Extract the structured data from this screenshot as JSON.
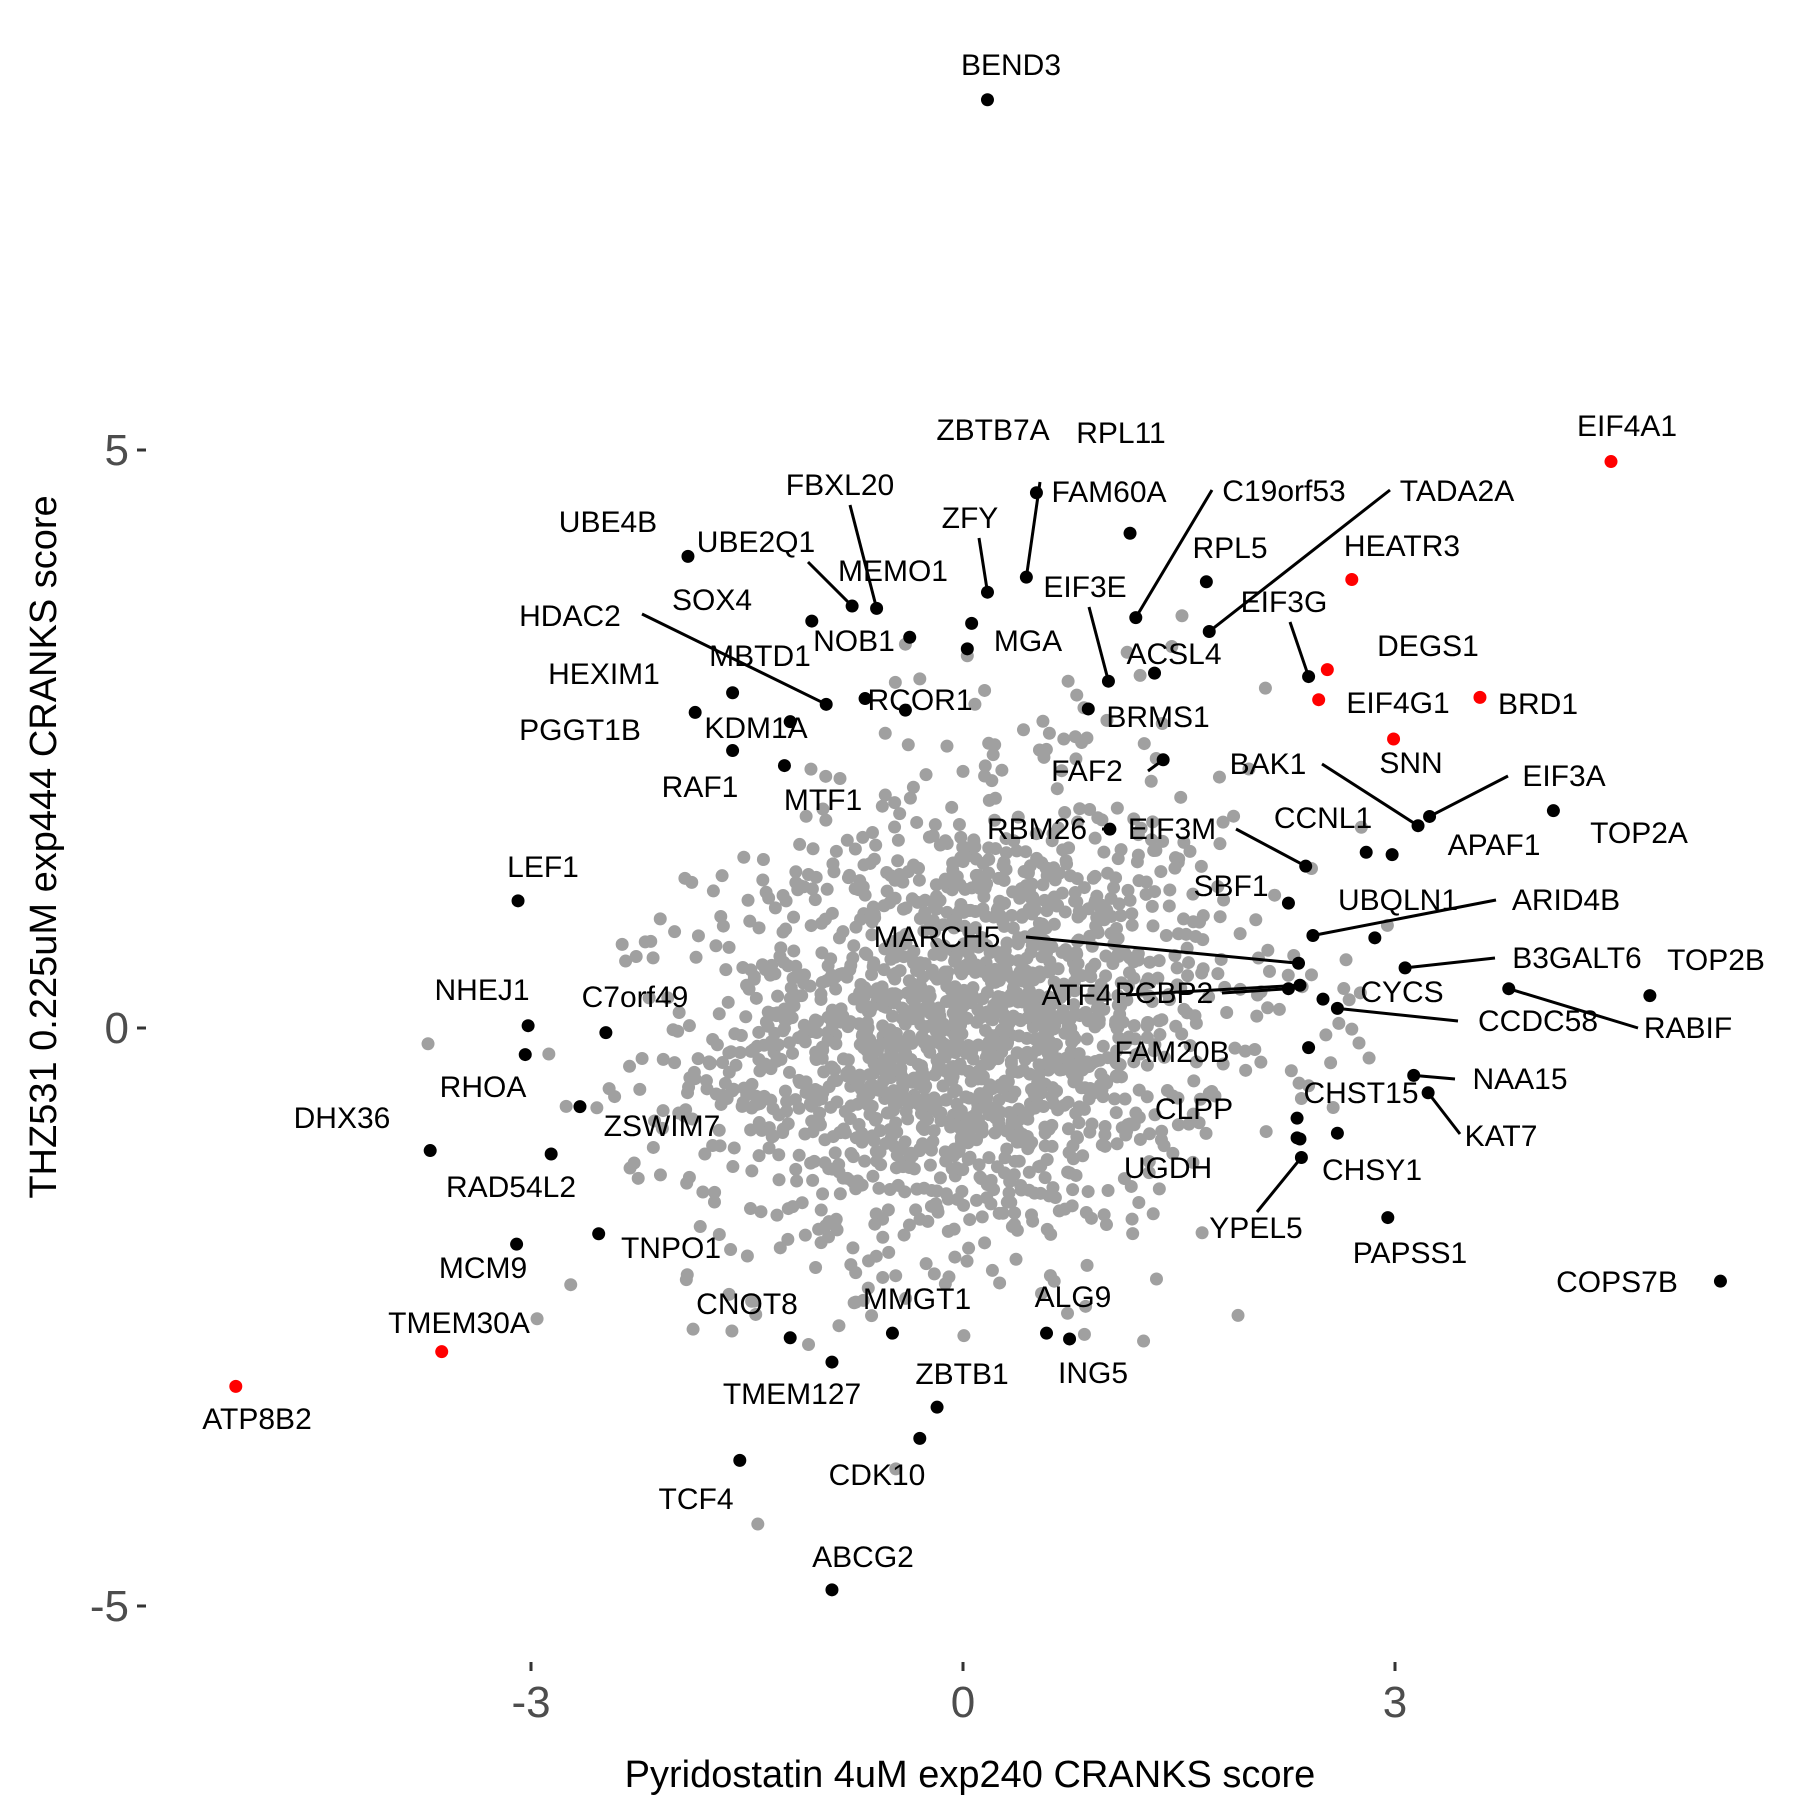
{
  "colors": {
    "background": "#ffffff",
    "background_points": "#a0a0a0",
    "highlight": "#ff0000",
    "normal": "#000000"
  },
  "chart_data": {
    "type": "scatter",
    "xlabel": "Pyridostatin 4uM exp240 CRANKS score",
    "ylabel": "THZ531 0.225uM exp444 CRANKS score",
    "xlim": [
      -5.15,
      5.3
    ],
    "ylim": [
      -5.45,
      8.4
    ],
    "xticks": [
      -3,
      0,
      3
    ],
    "yticks": [
      -5,
      0,
      5
    ],
    "xtick_labels": [
      "-3",
      "0",
      "3"
    ],
    "ytick_labels": [
      "-5",
      "0",
      "5"
    ],
    "grid": false,
    "legend": "none",
    "background_cloud": {
      "n": 1800,
      "x_sd": 0.92,
      "y_sd": 0.98,
      "correlation": 0.15,
      "color": "#a0a0a0"
    },
    "points": [
      {
        "gene": "BEND3",
        "x": 0.17,
        "y": 8.03,
        "color": "black"
      },
      {
        "gene": "EIF4A1",
        "x": 4.5,
        "y": 4.9,
        "color": "red"
      },
      {
        "gene": "ZBTB7A",
        "x": 0.51,
        "y": 4.63,
        "color": "black"
      },
      {
        "gene": "RPL11",
        "x": 1.16,
        "y": 4.28,
        "color": "black"
      },
      {
        "gene": "FAM60A",
        "x": 0.44,
        "y": 3.9,
        "color": "black"
      },
      {
        "gene": "C19orf53",
        "x": 1.2,
        "y": 3.55,
        "color": "black"
      },
      {
        "gene": "TADA2A",
        "x": 1.71,
        "y": 3.43,
        "color": "black"
      },
      {
        "gene": "RPL5",
        "x": 1.69,
        "y": 3.86,
        "color": "black"
      },
      {
        "gene": "HEATR3",
        "x": 2.7,
        "y": 3.88,
        "color": "red"
      },
      {
        "gene": "UBE4B",
        "x": -1.91,
        "y": 4.08,
        "color": "black"
      },
      {
        "gene": "UBE2Q1",
        "x": -0.77,
        "y": 3.65,
        "color": "black"
      },
      {
        "gene": "FBXL20",
        "x": -0.6,
        "y": 3.63,
        "color": "black"
      },
      {
        "gene": "ZFY",
        "x": 0.17,
        "y": 3.77,
        "color": "black"
      },
      {
        "gene": "MEMO1",
        "x": 0.06,
        "y": 3.5,
        "color": "black"
      },
      {
        "gene": "SOX4",
        "x": -1.05,
        "y": 3.52,
        "color": "black"
      },
      {
        "gene": "NOB1",
        "x": -0.37,
        "y": 3.38,
        "color": "black"
      },
      {
        "gene": "MGA",
        "x": 0.03,
        "y": 3.28,
        "color": "black"
      },
      {
        "gene": "EIF3E",
        "x": 1.01,
        "y": 3.0,
        "color": "black"
      },
      {
        "gene": "ACSL4",
        "x": 1.33,
        "y": 3.07,
        "color": "black"
      },
      {
        "gene": "EIF3G",
        "x": 2.4,
        "y": 3.04,
        "color": "black"
      },
      {
        "gene": "DEGS1",
        "x": 2.53,
        "y": 3.1,
        "color": "red"
      },
      {
        "gene": "EIF4G1",
        "x": 2.47,
        "y": 2.84,
        "color": "red"
      },
      {
        "gene": "BRD1",
        "x": 3.59,
        "y": 2.86,
        "color": "red"
      },
      {
        "gene": "SNN",
        "x": 2.99,
        "y": 2.5,
        "color": "red"
      },
      {
        "gene": "HDAC2",
        "x": -0.95,
        "y": 2.8,
        "color": "black"
      },
      {
        "gene": "HEXIM1",
        "x": -1.6,
        "y": 2.9,
        "color": "black"
      },
      {
        "gene": "MBTD1",
        "x": -1.2,
        "y": 2.65,
        "color": "black"
      },
      {
        "gene": "PGGT1B",
        "x": -1.86,
        "y": 2.73,
        "color": "black"
      },
      {
        "gene": "KDM1A",
        "x": -1.6,
        "y": 2.4,
        "color": "black"
      },
      {
        "gene": "RCOR1",
        "x": -0.68,
        "y": 2.85,
        "color": "black"
      },
      {
        "gene": "BRMS1",
        "x": 0.87,
        "y": 2.76,
        "color": "black"
      },
      {
        "gene": "RAF1",
        "x": -1.24,
        "y": 2.27,
        "color": "black"
      },
      {
        "gene": "FAF2",
        "x": 1.39,
        "y": 2.32,
        "color": "black"
      },
      {
        "gene": "MTF1",
        "x": -0.4,
        "y": 2.75,
        "color": "black"
      },
      {
        "gene": "RBM26",
        "x": 1.02,
        "y": 1.72,
        "color": "black"
      },
      {
        "gene": "BAK1",
        "x": 3.16,
        "y": 1.75,
        "color": "black"
      },
      {
        "gene": "EIF3A",
        "x": 3.24,
        "y": 1.83,
        "color": "black"
      },
      {
        "gene": "TOP2A",
        "x": 4.1,
        "y": 1.88,
        "color": "black"
      },
      {
        "gene": "APAF1",
        "x": 2.98,
        "y": 1.5,
        "color": "black"
      },
      {
        "gene": "CCNL1",
        "x": 2.8,
        "y": 1.52,
        "color": "black"
      },
      {
        "gene": "EIF3M",
        "x": 2.38,
        "y": 1.4,
        "color": "black"
      },
      {
        "gene": "SBF1",
        "x": 2.26,
        "y": 1.08,
        "color": "black"
      },
      {
        "gene": "LEF1",
        "x": -3.09,
        "y": 1.1,
        "color": "black"
      },
      {
        "gene": "UBQLN1",
        "x": 2.86,
        "y": 0.78,
        "color": "black"
      },
      {
        "gene": "ARID4B",
        "x": 2.43,
        "y": 0.8,
        "color": "black"
      },
      {
        "gene": "MARCH5",
        "x": 2.33,
        "y": 0.56,
        "color": "black"
      },
      {
        "gene": "B3GALT6",
        "x": 3.07,
        "y": 0.52,
        "color": "black"
      },
      {
        "gene": "TOP2B",
        "x": 4.77,
        "y": 0.28,
        "color": "black"
      },
      {
        "gene": "RABIF",
        "x": 3.79,
        "y": 0.34,
        "color": "black"
      },
      {
        "gene": "ATF4",
        "x": 2.34,
        "y": 0.37,
        "color": "black"
      },
      {
        "gene": "PCBP2",
        "x": 2.26,
        "y": 0.34,
        "color": "black"
      },
      {
        "gene": "CYCS",
        "x": 2.5,
        "y": 0.25,
        "color": "black"
      },
      {
        "gene": "CCDC58",
        "x": 2.6,
        "y": 0.17,
        "color": "black"
      },
      {
        "gene": "NHEJ1",
        "x": -3.02,
        "y": 0.02,
        "color": "black"
      },
      {
        "gene": "C7orf49",
        "x": -2.48,
        "y": -0.04,
        "color": "black"
      },
      {
        "gene": "FAM20B",
        "x": 2.4,
        "y": -0.17,
        "color": "black"
      },
      {
        "gene": "NAA15",
        "x": 3.13,
        "y": -0.41,
        "color": "black"
      },
      {
        "gene": "KAT7",
        "x": 3.23,
        "y": -0.56,
        "color": "black"
      },
      {
        "gene": "RHOA",
        "x": -3.04,
        "y": -0.23,
        "color": "black"
      },
      {
        "gene": "CHST15",
        "x": 2.32,
        "y": -0.78,
        "color": "black"
      },
      {
        "gene": "CLPP",
        "x": 2.32,
        "y": -0.95,
        "color": "black"
      },
      {
        "gene": "UGDH",
        "x": 2.34,
        "y": -0.96,
        "color": "black"
      },
      {
        "gene": "CHSY1",
        "x": 2.6,
        "y": -0.91,
        "color": "black"
      },
      {
        "gene": "YPEL5",
        "x": 2.35,
        "y": -1.12,
        "color": "black"
      },
      {
        "gene": "PAPSS1",
        "x": 2.95,
        "y": -1.64,
        "color": "black"
      },
      {
        "gene": "COPS7B",
        "x": 5.26,
        "y": -2.19,
        "color": "black"
      },
      {
        "gene": "DHX36",
        "x": -3.7,
        "y": -1.06,
        "color": "black"
      },
      {
        "gene": "ZSWIM7",
        "x": -2.66,
        "y": -0.68,
        "color": "black"
      },
      {
        "gene": "RAD54L2",
        "x": -2.86,
        "y": -1.09,
        "color": "black"
      },
      {
        "gene": "MCM9",
        "x": -3.1,
        "y": -1.87,
        "color": "black"
      },
      {
        "gene": "TNPO1",
        "x": -2.53,
        "y": -1.78,
        "color": "black"
      },
      {
        "gene": "TMEM30A",
        "x": -3.62,
        "y": -2.8,
        "color": "red"
      },
      {
        "gene": "ATP8B2",
        "x": -5.05,
        "y": -3.1,
        "color": "red"
      },
      {
        "gene": "CNOT8",
        "x": -1.2,
        "y": -2.68,
        "color": "black"
      },
      {
        "gene": "MMGT1",
        "x": -0.49,
        "y": -2.64,
        "color": "black"
      },
      {
        "gene": "TMEM127",
        "x": -0.91,
        "y": -2.89,
        "color": "black"
      },
      {
        "gene": "ALG9",
        "x": 0.58,
        "y": -2.64,
        "color": "black"
      },
      {
        "gene": "ING5",
        "x": 0.74,
        "y": -2.69,
        "color": "black"
      },
      {
        "gene": "ZBTB1",
        "x": -0.18,
        "y": -3.28,
        "color": "black"
      },
      {
        "gene": "CDK10",
        "x": -0.3,
        "y": -3.55,
        "color": "black"
      },
      {
        "gene": "TCF4",
        "x": -1.55,
        "y": -3.74,
        "color": "black"
      },
      {
        "gene": "ABCG2",
        "x": -0.91,
        "y": -4.86,
        "color": "black"
      }
    ],
    "extra_points": [
      [
        -0.4,
        3.32
      ],
      [
        -0.3,
        3.02
      ],
      [
        0.03,
        3.22
      ],
      [
        0.15,
        2.92
      ],
      [
        -0.47,
        2.99
      ],
      [
        -0.54,
        2.55
      ],
      [
        -0.38,
        2.45
      ],
      [
        0.22,
        2.45
      ],
      [
        0.42,
        2.58
      ],
      [
        0.6,
        2.55
      ],
      [
        0.7,
        2.5
      ],
      [
        0.78,
        2.52
      ],
      [
        0.0,
        2.22
      ],
      [
        0.15,
        2.18
      ],
      [
        0.27,
        2.23
      ],
      [
        0.2,
        2.14
      ],
      [
        0.79,
        2.88
      ],
      [
        0.73,
        3.0
      ],
      [
        1.14,
        3.25
      ],
      [
        1.23,
        3.05
      ],
      [
        1.45,
        3.3
      ],
      [
        2.1,
        2.94
      ],
      [
        0.84,
        2.77
      ],
      [
        2.42,
        1.38
      ],
      [
        2.66,
        0.59
      ],
      [
        2.42,
        0.46
      ],
      [
        2.61,
        0.04
      ],
      [
        2.7,
        -0.01
      ],
      [
        2.75,
        -0.13
      ],
      [
        2.82,
        -0.26
      ],
      [
        2.35,
        -0.61
      ],
      [
        2.52,
        -0.06
      ],
      [
        1.96,
        -0.2
      ],
      [
        2.28,
        -0.37
      ],
      [
        2.4,
        -0.5
      ]
    ]
  }
}
